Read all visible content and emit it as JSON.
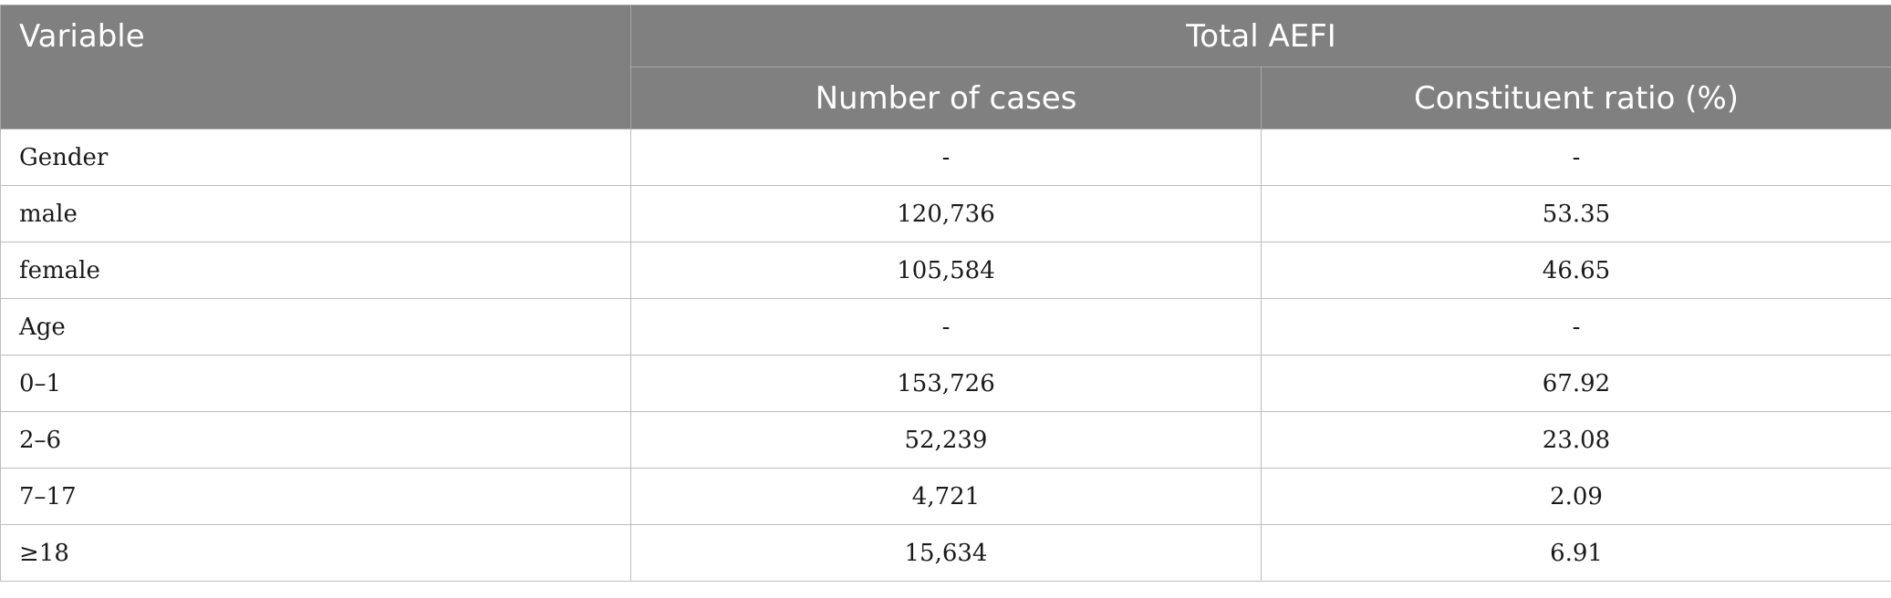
{
  "table": {
    "headers": {
      "variable": "Variable",
      "group": "Total AEFI",
      "cases": "Number of cases",
      "ratio": "Constituent ratio (%)"
    },
    "rows": [
      {
        "label": "Gender",
        "cases": "-",
        "ratio": "-"
      },
      {
        "label": "male",
        "cases": "120,736",
        "ratio": "53.35"
      },
      {
        "label": "female",
        "cases": "105,584",
        "ratio": "46.65"
      },
      {
        "label": "Age",
        "cases": "-",
        "ratio": "-"
      },
      {
        "label": "0–1",
        "cases": "153,726",
        "ratio": "67.92"
      },
      {
        "label": "2–6",
        "cases": "52,239",
        "ratio": "23.08"
      },
      {
        "label": "7–17",
        "cases": "4,721",
        "ratio": "2.09"
      },
      {
        "label": "≥18",
        "cases": "15,634",
        "ratio": "6.91"
      }
    ]
  }
}
